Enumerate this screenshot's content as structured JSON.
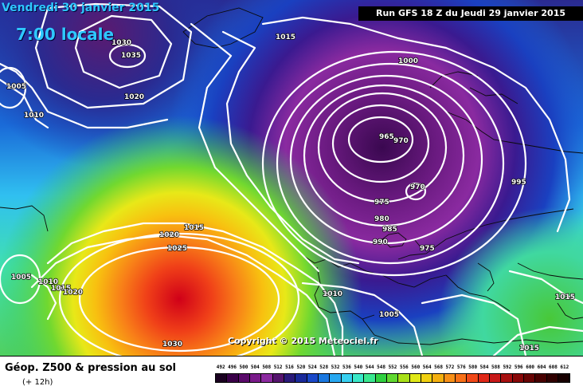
{
  "header": {
    "date": "Vendredi 30 janvier 2015",
    "time": "7:00 locale",
    "run": "Run GFS 18 Z du Jeudi 29 janvier 2015"
  },
  "map": {
    "copyright": "Copyright © 2015 Meteociel.fr",
    "isobar_labels": [
      "1030",
      "1035",
      "1015",
      "1005",
      "1010",
      "1020",
      "1000",
      "965",
      "970",
      "970",
      "995",
      "975",
      "980",
      "985",
      "990",
      "975",
      "1020",
      "1015",
      "1025",
      "1005",
      "1010",
      "1015",
      "1020",
      "1010",
      "1005",
      "1015",
      "1030",
      "1015"
    ]
  },
  "footer": {
    "caption": "Géop. Z500 & pression au sol",
    "subcaption": "(+ 12h)"
  },
  "scale": {
    "values": [
      "492",
      "496",
      "500",
      "504",
      "508",
      "512",
      "516",
      "520",
      "524",
      "528",
      "532",
      "536",
      "540",
      "544",
      "548",
      "552",
      "556",
      "560",
      "564",
      "568",
      "572",
      "576",
      "580",
      "584",
      "588",
      "592",
      "596",
      "600",
      "604",
      "608",
      "612"
    ],
    "colors": [
      "#1a0020",
      "#3a0048",
      "#5a0a6a",
      "#7a1a8a",
      "#8c2aa0",
      "#55146e",
      "#2a1a7a",
      "#1a2a9a",
      "#1a48c8",
      "#1a78e0",
      "#28a8f0",
      "#38d0f0",
      "#3ae8c8",
      "#3ae890",
      "#30d040",
      "#60d830",
      "#a8e018",
      "#e0e818",
      "#f0d010",
      "#f4b010",
      "#f89018",
      "#f87018",
      "#f04818",
      "#e02818",
      "#c81818",
      "#a81010",
      "#880808",
      "#680404",
      "#480000",
      "#300000",
      "#180000"
    ]
  }
}
